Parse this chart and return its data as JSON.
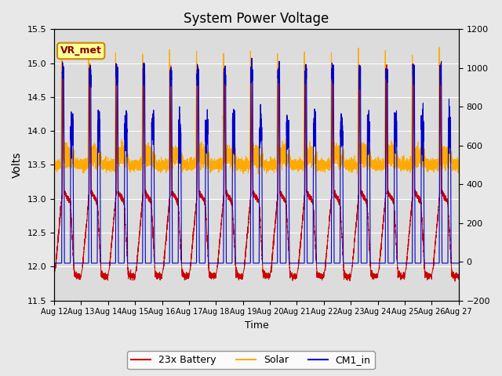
{
  "title": "System Power Voltage",
  "xlabel": "Time",
  "ylabel_left": "Volts",
  "ylim_left": [
    11.5,
    15.5
  ],
  "ylim_right": [
    -200,
    1200
  ],
  "fig_facecolor": "#e8e8e8",
  "plot_facecolor": "#dcdcdc",
  "x_tick_labels": [
    "Aug 12",
    "Aug 13",
    "Aug 14",
    "Aug 15",
    "Aug 16",
    "Aug 17",
    "Aug 18",
    "Aug 19",
    "Aug 20",
    "Aug 21",
    "Aug 22",
    "Aug 23",
    "Aug 24",
    "Aug 25",
    "Aug 26",
    "Aug 27"
  ],
  "y_ticks_left": [
    11.5,
    12.0,
    12.5,
    13.0,
    13.5,
    14.0,
    14.5,
    15.0,
    15.5
  ],
  "y_ticks_right": [
    -200,
    0,
    200,
    400,
    600,
    800,
    1000,
    1200
  ],
  "battery_color": "#cc0000",
  "solar_color": "#ffaa00",
  "cm1_color": "#0000cc",
  "n_days": 15,
  "pts_per_day": 500,
  "seed": 42
}
